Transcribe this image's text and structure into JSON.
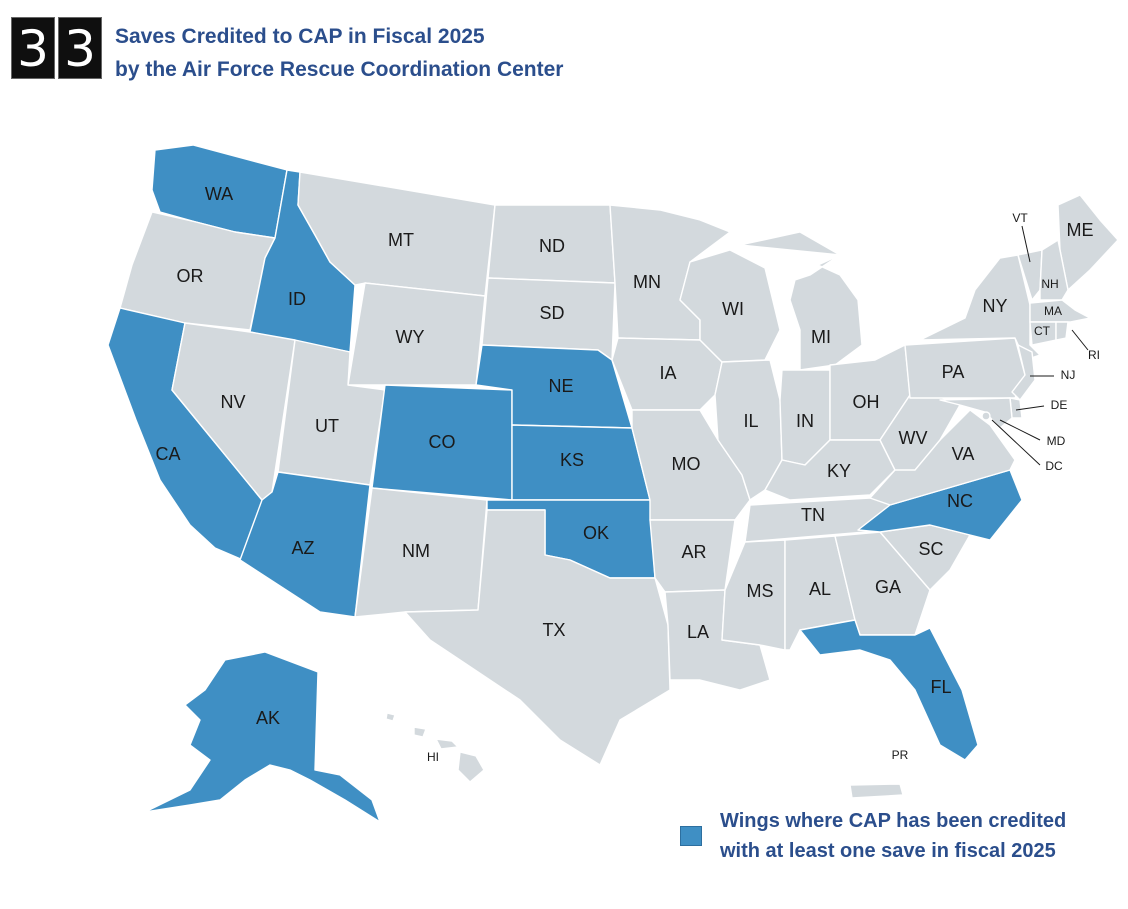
{
  "header": {
    "counter_digits": [
      "3",
      "3"
    ],
    "title_line1": "Saves Credited to CAP in Fiscal 2025",
    "title_line2": "by the Air Force Rescue Coordination Center"
  },
  "legend": {
    "line1": "Wings where CAP has been credited",
    "line2": "with at least one save in fiscal 2025"
  },
  "colors": {
    "highlight": "#3f8fc4",
    "default": "#d3d9dd",
    "title": "#2b4e8c"
  },
  "states": [
    {
      "code": "WA",
      "highlighted": true
    },
    {
      "code": "OR",
      "highlighted": false
    },
    {
      "code": "CA",
      "highlighted": true
    },
    {
      "code": "ID",
      "highlighted": true
    },
    {
      "code": "NV",
      "highlighted": false
    },
    {
      "code": "MT",
      "highlighted": false
    },
    {
      "code": "WY",
      "highlighted": false
    },
    {
      "code": "UT",
      "highlighted": false
    },
    {
      "code": "AZ",
      "highlighted": true
    },
    {
      "code": "CO",
      "highlighted": true
    },
    {
      "code": "NM",
      "highlighted": false
    },
    {
      "code": "ND",
      "highlighted": false
    },
    {
      "code": "SD",
      "highlighted": false
    },
    {
      "code": "NE",
      "highlighted": true
    },
    {
      "code": "KS",
      "highlighted": true
    },
    {
      "code": "OK",
      "highlighted": true
    },
    {
      "code": "TX",
      "highlighted": false
    },
    {
      "code": "MN",
      "highlighted": false
    },
    {
      "code": "IA",
      "highlighted": false
    },
    {
      "code": "MO",
      "highlighted": false
    },
    {
      "code": "AR",
      "highlighted": false
    },
    {
      "code": "LA",
      "highlighted": false
    },
    {
      "code": "WI",
      "highlighted": false
    },
    {
      "code": "IL",
      "highlighted": false
    },
    {
      "code": "MI",
      "highlighted": false
    },
    {
      "code": "IN",
      "highlighted": false
    },
    {
      "code": "OH",
      "highlighted": false
    },
    {
      "code": "KY",
      "highlighted": false
    },
    {
      "code": "TN",
      "highlighted": false
    },
    {
      "code": "MS",
      "highlighted": false
    },
    {
      "code": "AL",
      "highlighted": false
    },
    {
      "code": "GA",
      "highlighted": false
    },
    {
      "code": "FL",
      "highlighted": true
    },
    {
      "code": "SC",
      "highlighted": false
    },
    {
      "code": "NC",
      "highlighted": true
    },
    {
      "code": "VA",
      "highlighted": false
    },
    {
      "code": "WV",
      "highlighted": false
    },
    {
      "code": "PA",
      "highlighted": false
    },
    {
      "code": "NY",
      "highlighted": false
    },
    {
      "code": "ME",
      "highlighted": false
    },
    {
      "code": "VT",
      "highlighted": false
    },
    {
      "code": "NH",
      "highlighted": false
    },
    {
      "code": "MA",
      "highlighted": false
    },
    {
      "code": "CT",
      "highlighted": false
    },
    {
      "code": "RI",
      "highlighted": false
    },
    {
      "code": "NJ",
      "highlighted": false
    },
    {
      "code": "DE",
      "highlighted": false
    },
    {
      "code": "MD",
      "highlighted": false
    },
    {
      "code": "DC",
      "highlighted": false
    },
    {
      "code": "AK",
      "highlighted": true
    },
    {
      "code": "HI",
      "highlighted": false
    },
    {
      "code": "PR",
      "highlighted": false
    }
  ]
}
